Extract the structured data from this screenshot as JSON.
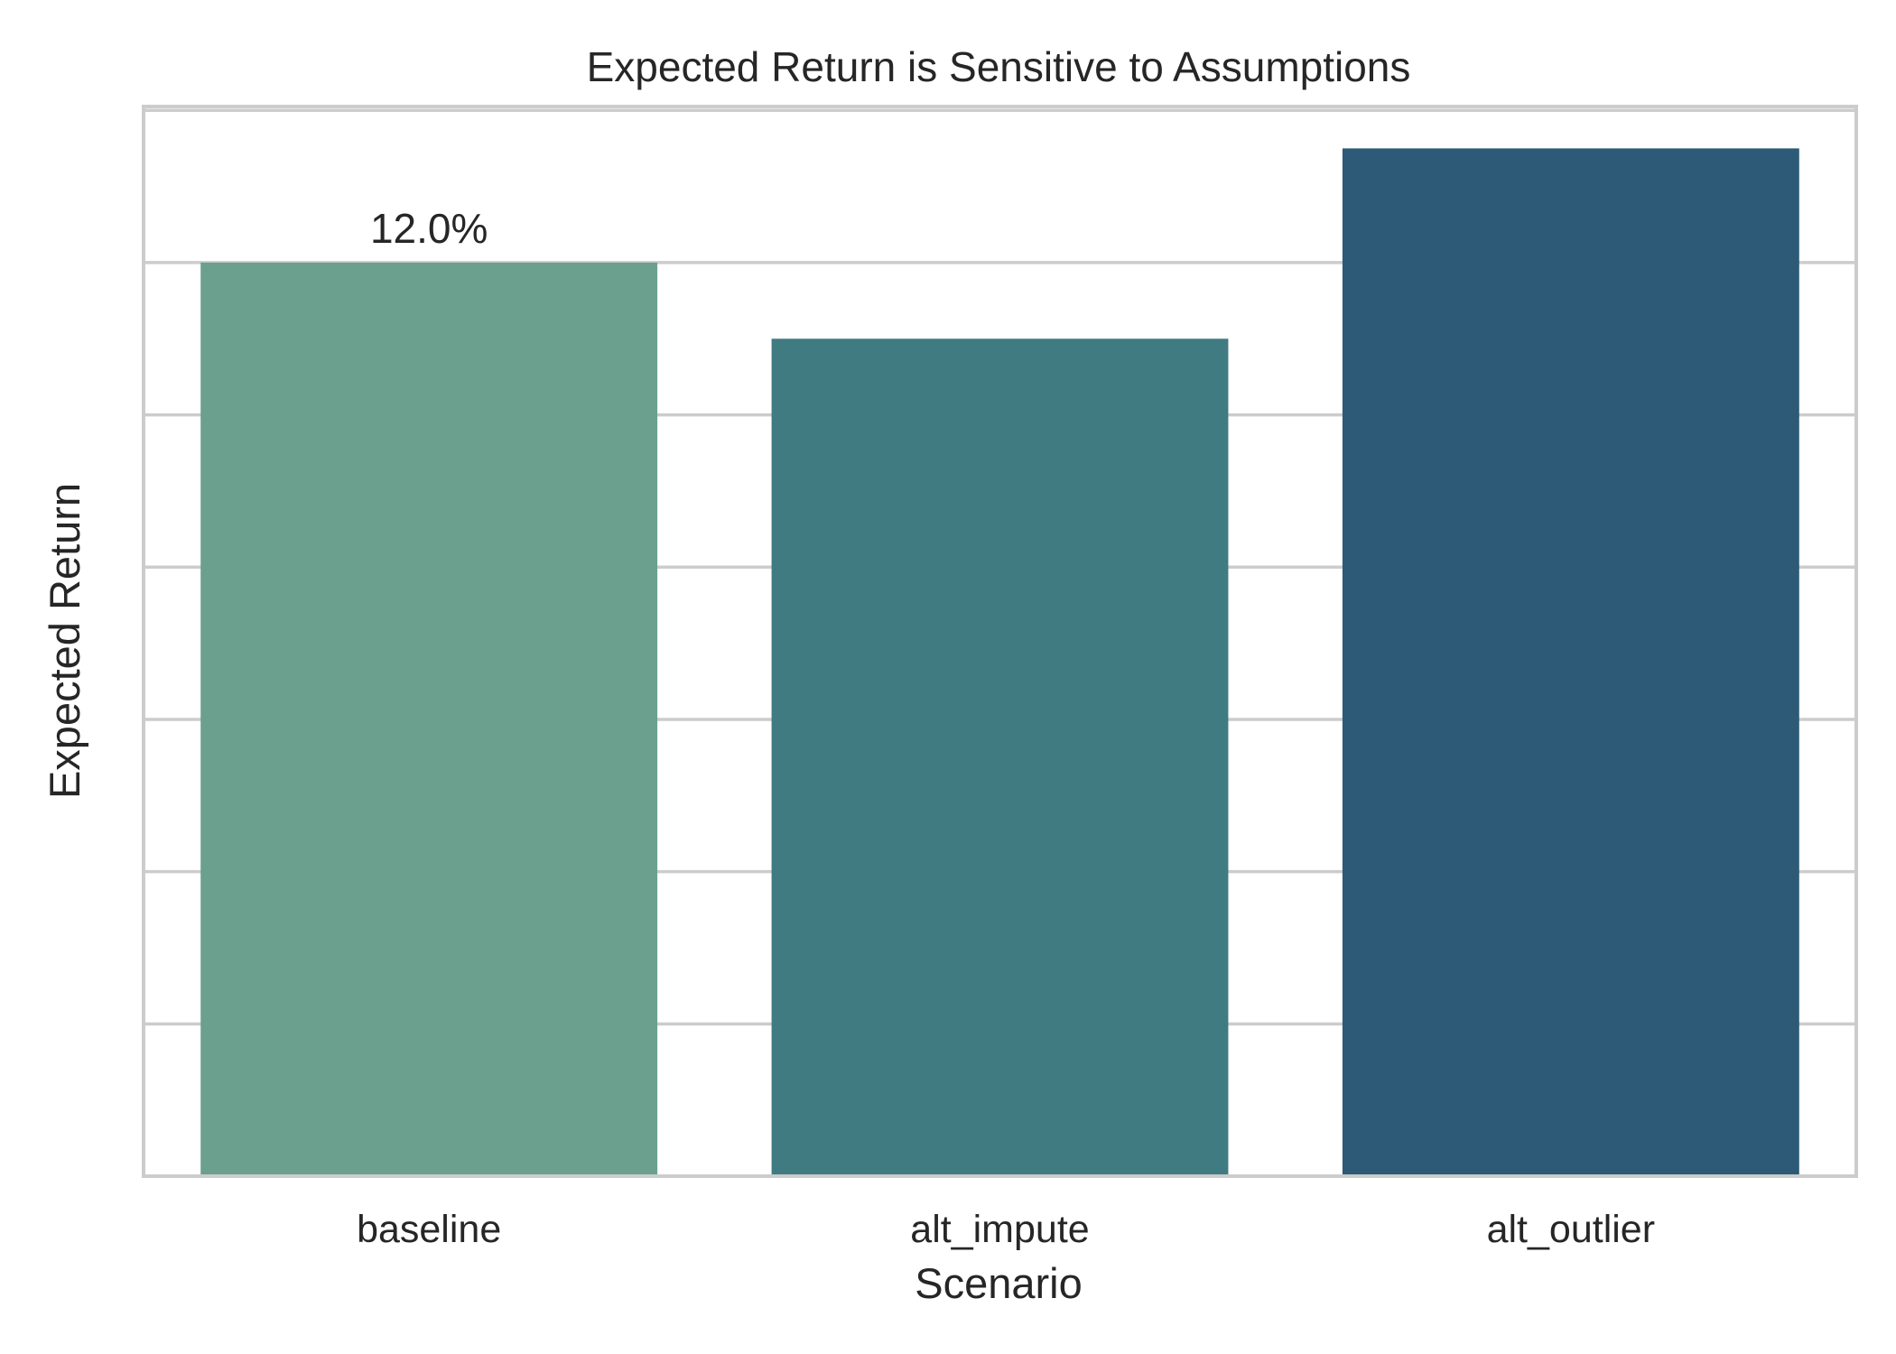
{
  "chart_data": {
    "type": "bar",
    "title": "Expected Return is Sensitive to Assumptions",
    "xlabel": "Scenario",
    "ylabel": "Expected Return",
    "categories": [
      "baseline",
      "alt_impute",
      "alt_outlier"
    ],
    "values": [
      0.12,
      0.11,
      0.135
    ],
    "data_labels": [
      "12.0%",
      "",
      ""
    ],
    "colors": [
      "#6aa08d",
      "#407b82",
      "#2c5a77"
    ],
    "ylim": [
      0,
      0.1405
    ],
    "y_gridlines": [
      0.02,
      0.04,
      0.06,
      0.08,
      0.1,
      0.12,
      0.14
    ],
    "grid": true,
    "legend": "none"
  }
}
